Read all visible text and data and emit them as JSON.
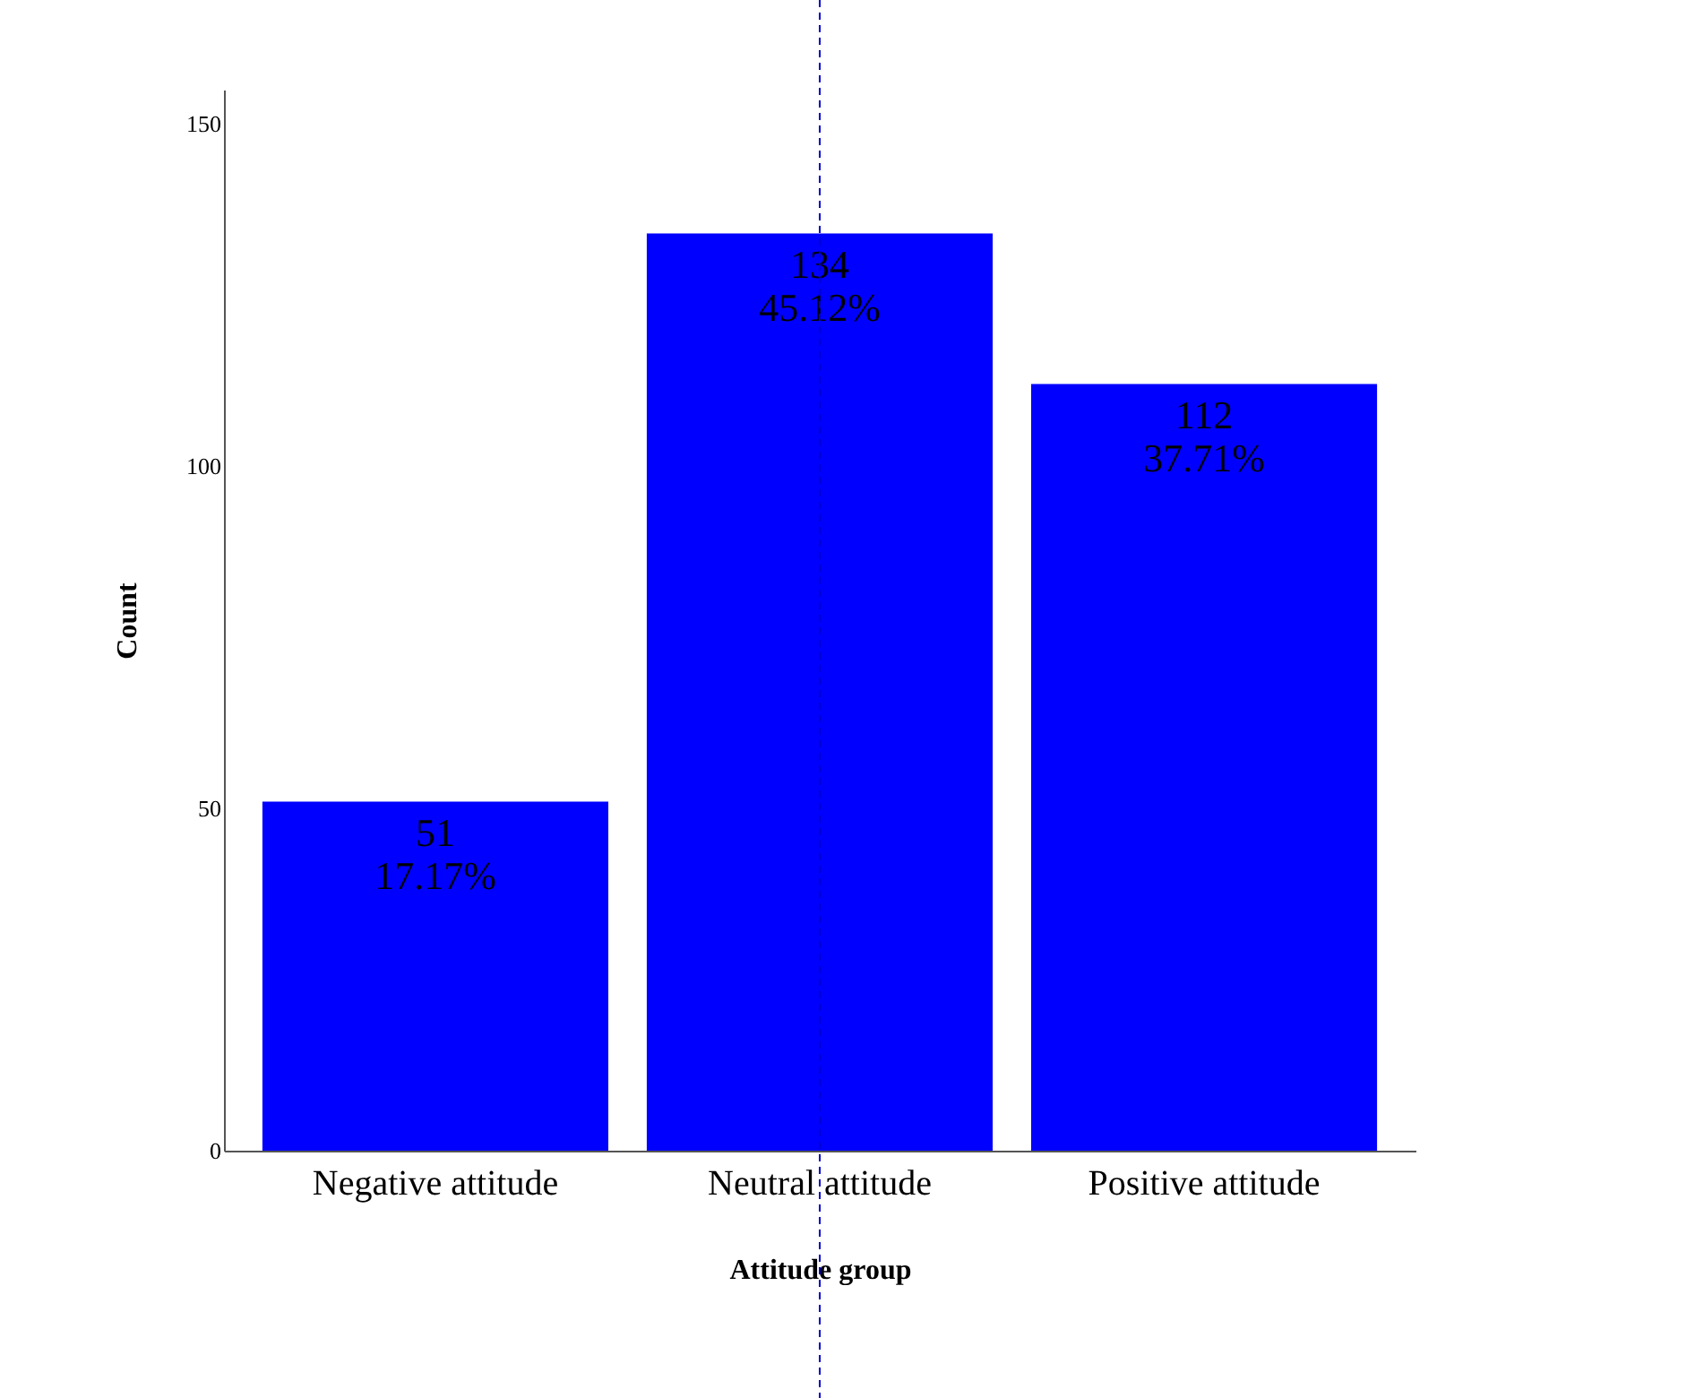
{
  "chart_data": {
    "type": "bar",
    "xlabel": "Attitude group",
    "ylabel": "Count",
    "categories": [
      "Negative attitude",
      "Neutral attitude",
      "Positive attitude"
    ],
    "values": [
      51,
      134,
      112
    ],
    "color": "#0000ff",
    "value_labels": [
      "51\n17.17%",
      "134\n45.12%",
      "112\n37.71%"
    ],
    "ylim": [
      0,
      155
    ],
    "yticks": [
      0,
      50,
      100,
      150
    ],
    "grid": false,
    "ref_lines": [
      {
        "axis": "x",
        "value": "Neutral attitude",
        "color": "#0000cc",
        "line_style": "dashed"
      }
    ]
  }
}
